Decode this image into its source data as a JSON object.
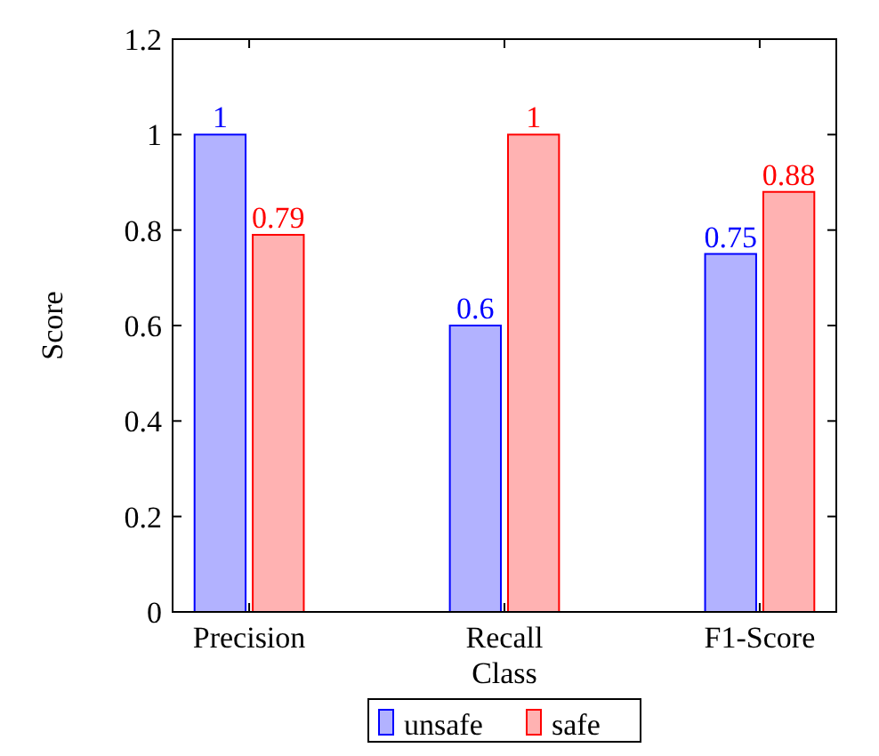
{
  "chart_data": {
    "type": "bar",
    "xlabel": "Class",
    "ylabel": "Score",
    "categories": [
      "Precision",
      "Recall",
      "F1-Score"
    ],
    "series": [
      {
        "name": "unsafe",
        "color": "#0000ff",
        "values": [
          1,
          0.6,
          0.75
        ]
      },
      {
        "name": "safe",
        "color": "#ff0000",
        "values": [
          0.79,
          1,
          0.88
        ]
      }
    ],
    "ylim": [
      0,
      1.2
    ],
    "yticks": [
      0,
      0.2,
      0.4,
      0.6,
      0.8,
      1,
      1.2
    ],
    "data_labels": true,
    "legend": "bottom"
  }
}
